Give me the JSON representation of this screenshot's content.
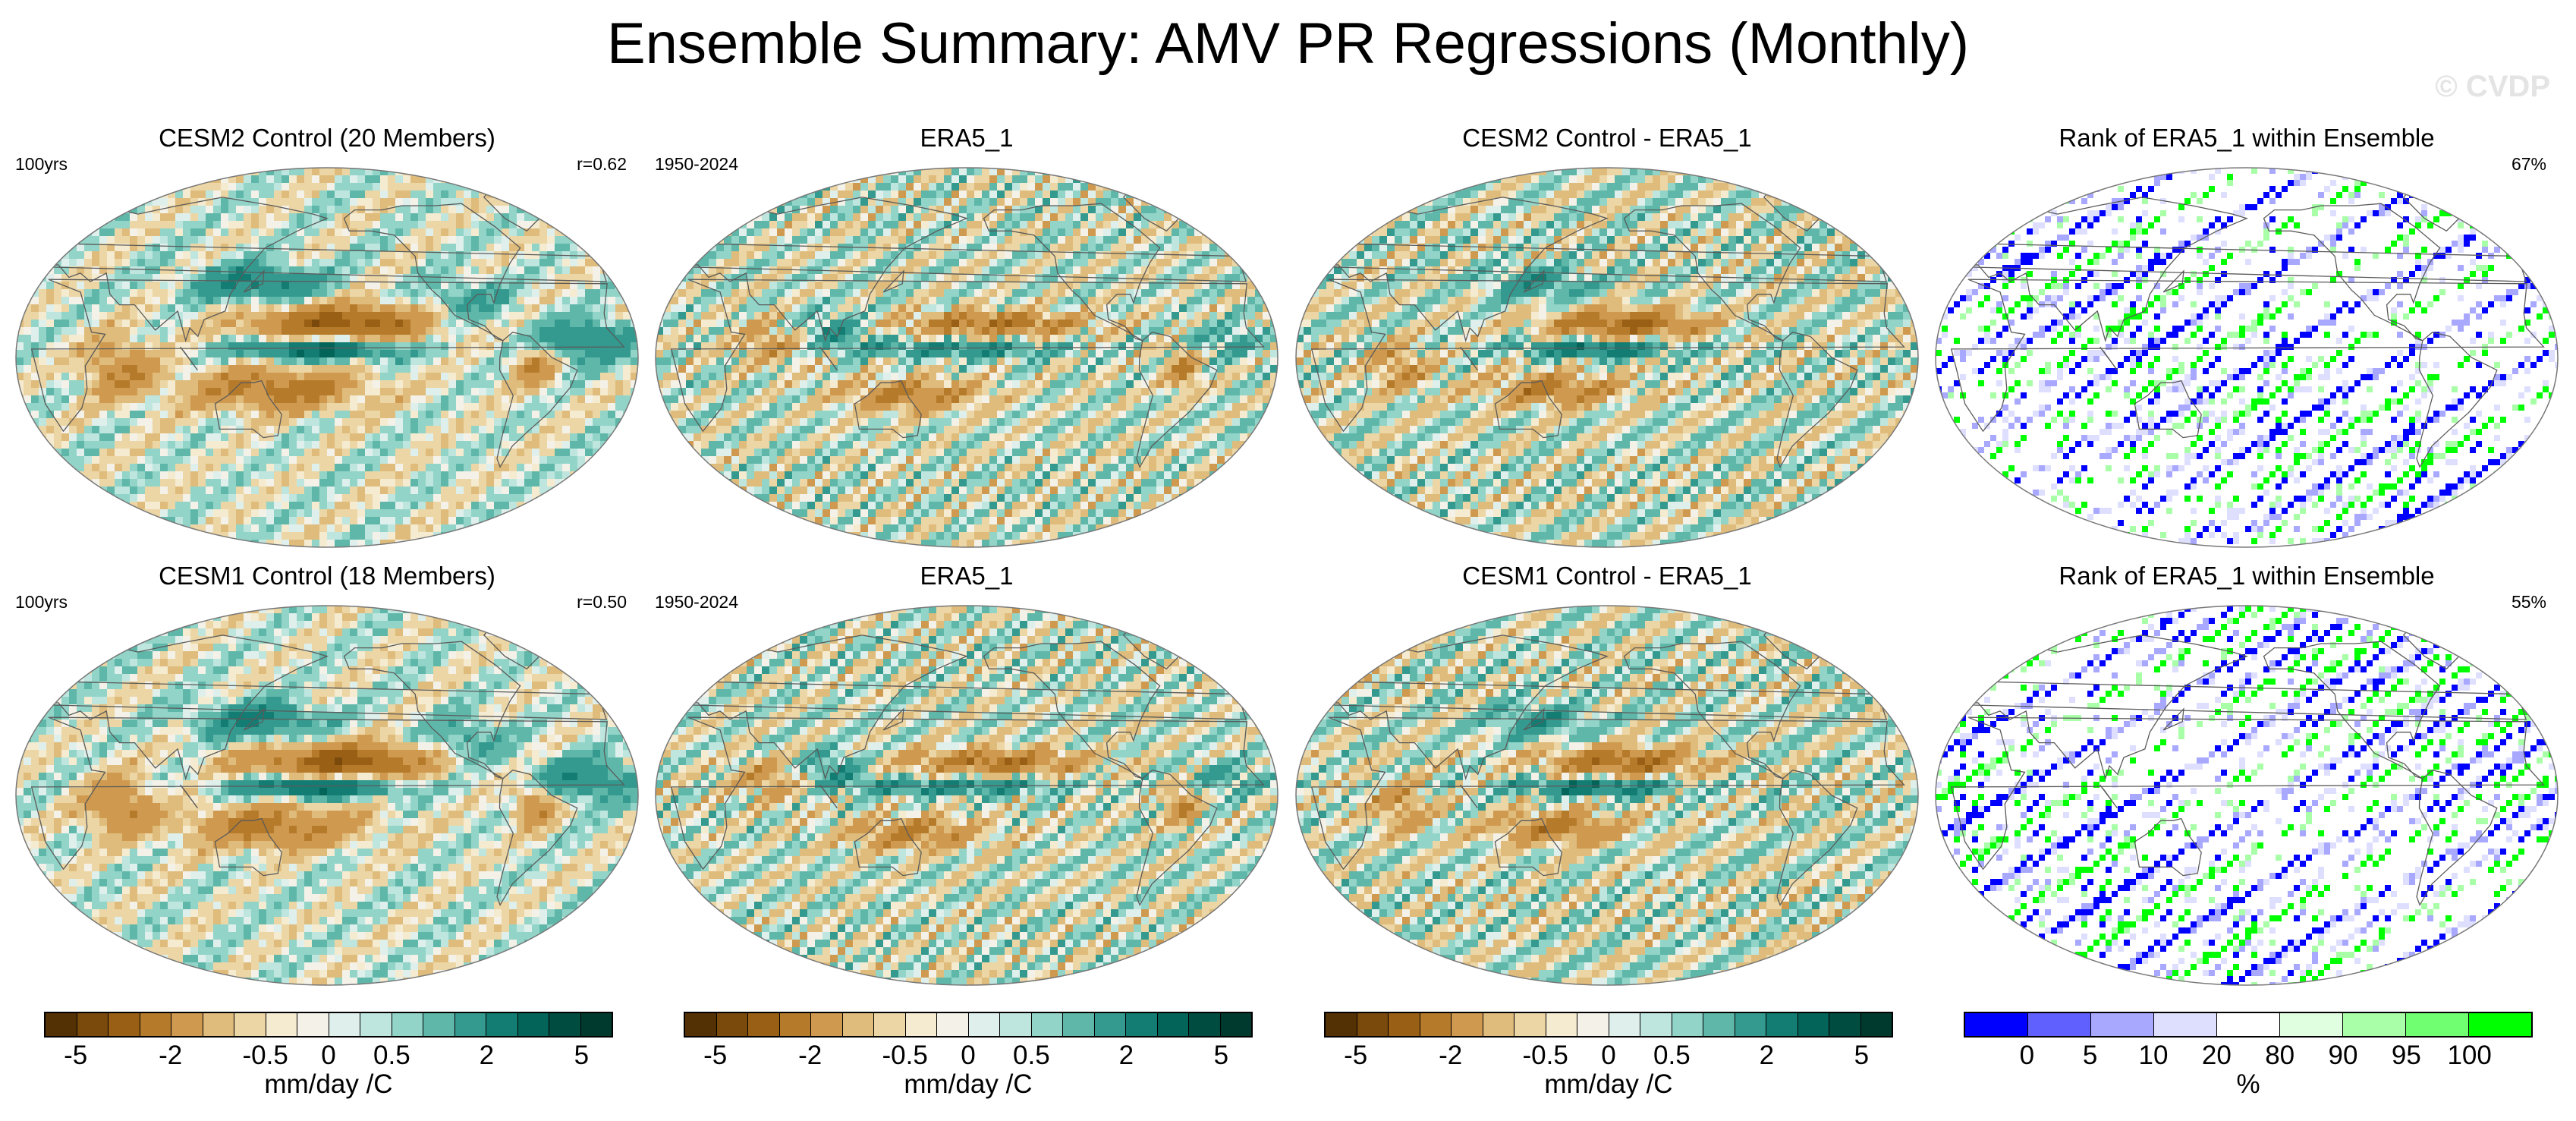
{
  "title": "Ensemble Summary: AMV PR Regressions (Monthly)",
  "watermark": "© CVDP",
  "colors": {
    "brbg": [
      "#543005",
      "#7a4a0c",
      "#995f14",
      "#b67a2b",
      "#cf9a4f",
      "#dfbc7b",
      "#ecd6a5",
      "#f5ebd0",
      "#f4f2e8",
      "#dff0ec",
      "#bee6df",
      "#92d4c8",
      "#5fb7a9",
      "#349a8f",
      "#137d73",
      "#03645a",
      "#004c40",
      "#003a2e"
    ],
    "rank": [
      "#0000ff",
      "#6060ff",
      "#a8a8ff",
      "#dedeff",
      "#ffffff",
      "#e0ffe0",
      "#a8ffa8",
      "#70ff70",
      "#00ff00"
    ],
    "land_outline": "#5a5a5a"
  },
  "panels": [
    {
      "title": "CESM2 Control (20 Members)",
      "left": "100yrs",
      "right": "r=0.62",
      "kind": "model"
    },
    {
      "title": "ERA5_1",
      "left": "1950-2024",
      "right": "",
      "kind": "obs"
    },
    {
      "title": "CESM2 Control - ERA5_1",
      "left": "",
      "right": "",
      "kind": "diff"
    },
    {
      "title": "Rank of ERA5_1 within Ensemble",
      "left": "",
      "right": "67%",
      "kind": "rank"
    },
    {
      "title": "CESM1 Control (18 Members)",
      "left": "100yrs",
      "right": "r=0.50",
      "kind": "model"
    },
    {
      "title": "ERA5_1",
      "left": "1950-2024",
      "right": "",
      "kind": "obs"
    },
    {
      "title": "CESM1 Control - ERA5_1",
      "left": "",
      "right": "",
      "kind": "diff"
    },
    {
      "title": "Rank of ERA5_1 within Ensemble",
      "left": "",
      "right": "55%",
      "kind": "rank"
    }
  ],
  "colorbars": [
    {
      "label": "mm/day /C",
      "ticks": [
        "-5",
        "-2",
        "-0.5",
        "0",
        "0.5",
        "2",
        "5"
      ],
      "tick_index": [
        1,
        4,
        7,
        9,
        11,
        14,
        17
      ],
      "n": 18,
      "palette": "brbg"
    },
    {
      "label": "mm/day /C",
      "ticks": [
        "-5",
        "-2",
        "-0.5",
        "0",
        "0.5",
        "2",
        "5"
      ],
      "tick_index": [
        1,
        4,
        7,
        9,
        11,
        14,
        17
      ],
      "n": 18,
      "palette": "brbg"
    },
    {
      "label": "mm/day /C",
      "ticks": [
        "-5",
        "-2",
        "-0.5",
        "0",
        "0.5",
        "2",
        "5"
      ],
      "tick_index": [
        1,
        4,
        7,
        9,
        11,
        14,
        17
      ],
      "n": 18,
      "palette": "brbg"
    },
    {
      "label": "%",
      "ticks": [
        "0",
        "5",
        "10",
        "20",
        "80",
        "90",
        "95",
        "100"
      ],
      "tick_index": [
        1,
        2,
        3,
        4,
        5,
        6,
        7,
        8
      ],
      "n": 9,
      "palette": "rank"
    }
  ],
  "chart_data": {
    "type": "heatmap",
    "title": "Ensemble Summary: AMV PR Regressions (Monthly)",
    "variable": "AMV PR Regressions",
    "units": "mm/day /C",
    "projection": "Robinson (global)",
    "rows": [
      {
        "model": "CESM2 Control (20 Members)",
        "years": "100yrs",
        "pattern_correlation": 0.62,
        "obs": "ERA5_1",
        "obs_period": "1950-2024",
        "rank_percent": 67
      },
      {
        "model": "CESM1 Control (18 Members)",
        "years": "100yrs",
        "pattern_correlation": 0.5,
        "obs": "ERA5_1",
        "obs_period": "1950-2024",
        "rank_percent": 55
      }
    ],
    "regression_levels": [
      -5,
      -4,
      -3,
      -2,
      -1,
      -0.5,
      -0.2,
      -0.1,
      0,
      0.1,
      0.2,
      0.5,
      1,
      2,
      3,
      4,
      5
    ],
    "rank_levels_percent": [
      0,
      5,
      10,
      20,
      80,
      90,
      95,
      100
    ]
  }
}
